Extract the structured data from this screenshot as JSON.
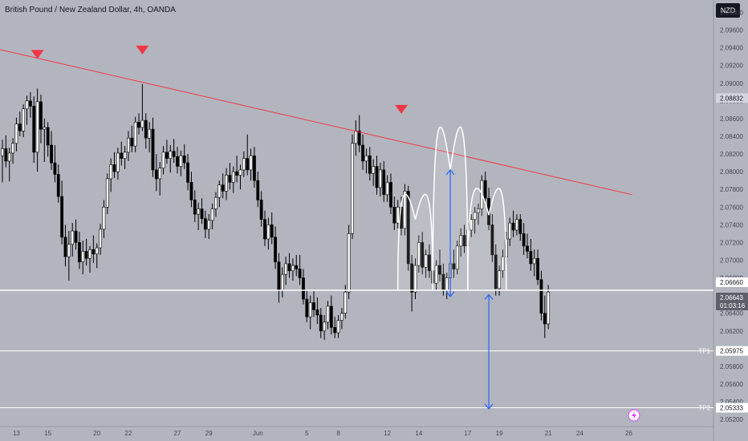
{
  "header": {
    "title": "British Pound / New Zealand Dollar, 4h, OANDA",
    "currency": "NZD"
  },
  "colors": {
    "background": "#b2b5be",
    "trendline": "#f23645",
    "marker": "#f23645",
    "level_line": "#ffffff",
    "arrow": "#2962ff",
    "candle_up": "#ffffff",
    "candle_down": "#000000",
    "tag_dark": "#131722",
    "tag_mid": "#5d606b"
  },
  "chart_data": {
    "type": "candlestick",
    "title": "British Pound / New Zealand Dollar, 4h, OANDA",
    "ylim": [
      2.0512,
      2.0994
    ],
    "y_ticks": [
      2.052,
      2.054,
      2.056,
      2.058,
      2.06,
      2.062,
      2.064,
      2.066,
      2.068,
      2.07,
      2.072,
      2.074,
      2.076,
      2.078,
      2.08,
      2.082,
      2.084,
      2.086,
      2.088,
      2.09,
      2.092,
      2.094,
      2.096,
      2.098
    ],
    "x_ticks": [
      {
        "label": "13",
        "index": 4
      },
      {
        "label": "15",
        "index": 13
      },
      {
        "label": "20",
        "index": 27
      },
      {
        "label": "22",
        "index": 36
      },
      {
        "label": "27",
        "index": 50
      },
      {
        "label": "29",
        "index": 59
      },
      {
        "label": "Jun",
        "index": 73
      },
      {
        "label": "5",
        "index": 87
      },
      {
        "label": "8",
        "index": 96
      },
      {
        "label": "12",
        "index": 110
      },
      {
        "label": "14",
        "index": 119
      },
      {
        "label": "17",
        "index": 133
      },
      {
        "label": "19",
        "index": 142
      },
      {
        "label": "21",
        "index": 156
      },
      {
        "label": "24",
        "index": 165
      },
      {
        "label": "26",
        "index": 179
      }
    ],
    "current_price": {
      "value": "2.06643",
      "countdown": "01:03:16"
    },
    "price_tag": "2.08832",
    "levels": [
      {
        "name": "",
        "value": 2.0666,
        "label": "2.06660"
      },
      {
        "name": "TP1",
        "value": 2.05975,
        "label": "2.05975"
      },
      {
        "name": "TP2",
        "value": 2.05333,
        "label": "2.05333"
      }
    ],
    "trendline": {
      "from": {
        "index": 0,
        "value": 2.0938
      },
      "to": {
        "index": 180,
        "value": 2.0774
      }
    },
    "markers": [
      {
        "index": 10,
        "value": 2.0932
      },
      {
        "index": 40,
        "value": 2.0937
      },
      {
        "index": 114,
        "value": 2.087
      }
    ],
    "arrows": [
      {
        "index": 128,
        "from": 2.0802,
        "to": 2.0659
      },
      {
        "index": 139,
        "from": 2.0661,
        "to": 2.0532
      }
    ],
    "arcs": [
      {
        "from_index": 113,
        "to_index": 123,
        "peak_index": 118,
        "peak": 2.0746,
        "base": 2.0666
      },
      {
        "from_index": 123,
        "to_index": 133,
        "peak_index": 128,
        "peak": 2.0802,
        "base": 2.0666
      },
      {
        "from_index": 133,
        "to_index": 144,
        "peak_index": 139,
        "peak": 2.0751,
        "base": 2.0666
      }
    ],
    "candles": [
      {
        "o": 2.0818,
        "h": 2.0836,
        "l": 2.0788,
        "c": 2.0826
      },
      {
        "o": 2.0826,
        "h": 2.0841,
        "l": 2.0805,
        "c": 2.0812
      },
      {
        "o": 2.0812,
        "h": 2.0827,
        "l": 2.0789,
        "c": 2.0821
      },
      {
        "o": 2.0821,
        "h": 2.0838,
        "l": 2.0809,
        "c": 2.0832
      },
      {
        "o": 2.0832,
        "h": 2.0861,
        "l": 2.0823,
        "c": 2.0854
      },
      {
        "o": 2.0854,
        "h": 2.0868,
        "l": 2.084,
        "c": 2.0846
      },
      {
        "o": 2.0846,
        "h": 2.0876,
        "l": 2.0839,
        "c": 2.0871
      },
      {
        "o": 2.0871,
        "h": 2.0886,
        "l": 2.0853,
        "c": 2.088
      },
      {
        "o": 2.088,
        "h": 2.089,
        "l": 2.0861,
        "c": 2.0874
      },
      {
        "o": 2.0874,
        "h": 2.0885,
        "l": 2.081,
        "c": 2.0822
      },
      {
        "o": 2.0822,
        "h": 2.0894,
        "l": 2.08,
        "c": 2.0879
      },
      {
        "o": 2.0879,
        "h": 2.0887,
        "l": 2.0832,
        "c": 2.0848
      },
      {
        "o": 2.0848,
        "h": 2.086,
        "l": 2.0811,
        "c": 2.085
      },
      {
        "o": 2.085,
        "h": 2.0856,
        "l": 2.0817,
        "c": 2.083
      },
      {
        "o": 2.083,
        "h": 2.0846,
        "l": 2.0802,
        "c": 2.081
      },
      {
        "o": 2.081,
        "h": 2.083,
        "l": 2.0788,
        "c": 2.0797
      },
      {
        "o": 2.0797,
        "h": 2.0808,
        "l": 2.0765,
        "c": 2.0772
      },
      {
        "o": 2.0772,
        "h": 2.079,
        "l": 2.0718,
        "c": 2.0726
      },
      {
        "o": 2.0726,
        "h": 2.074,
        "l": 2.0693,
        "c": 2.0704
      },
      {
        "o": 2.0704,
        "h": 2.0733,
        "l": 2.0677,
        "c": 2.0718
      },
      {
        "o": 2.0718,
        "h": 2.0742,
        "l": 2.0704,
        "c": 2.0733
      },
      {
        "o": 2.0733,
        "h": 2.0746,
        "l": 2.0712,
        "c": 2.072
      },
      {
        "o": 2.072,
        "h": 2.0732,
        "l": 2.069,
        "c": 2.0698
      },
      {
        "o": 2.0698,
        "h": 2.0722,
        "l": 2.0684,
        "c": 2.071
      },
      {
        "o": 2.071,
        "h": 2.0724,
        "l": 2.0694,
        "c": 2.0702
      },
      {
        "o": 2.0702,
        "h": 2.0716,
        "l": 2.0686,
        "c": 2.0712
      },
      {
        "o": 2.0712,
        "h": 2.0728,
        "l": 2.0697,
        "c": 2.0707
      },
      {
        "o": 2.0707,
        "h": 2.0719,
        "l": 2.0691,
        "c": 2.0714
      },
      {
        "o": 2.0714,
        "h": 2.0741,
        "l": 2.0706,
        "c": 2.0735
      },
      {
        "o": 2.0735,
        "h": 2.0768,
        "l": 2.0725,
        "c": 2.076
      },
      {
        "o": 2.076,
        "h": 2.0798,
        "l": 2.0752,
        "c": 2.0792
      },
      {
        "o": 2.0792,
        "h": 2.0815,
        "l": 2.0777,
        "c": 2.0808
      },
      {
        "o": 2.0808,
        "h": 2.0822,
        "l": 2.0793,
        "c": 2.08
      },
      {
        "o": 2.08,
        "h": 2.0827,
        "l": 2.0791,
        "c": 2.0821
      },
      {
        "o": 2.0821,
        "h": 2.0834,
        "l": 2.0807,
        "c": 2.0815
      },
      {
        "o": 2.0815,
        "h": 2.0829,
        "l": 2.0803,
        "c": 2.0822
      },
      {
        "o": 2.0822,
        "h": 2.0846,
        "l": 2.0812,
        "c": 2.0838
      },
      {
        "o": 2.0838,
        "h": 2.0852,
        "l": 2.0822,
        "c": 2.0829
      },
      {
        "o": 2.0829,
        "h": 2.0862,
        "l": 2.0822,
        "c": 2.0856
      },
      {
        "o": 2.0856,
        "h": 2.0866,
        "l": 2.0842,
        "c": 2.085
      },
      {
        "o": 2.085,
        "h": 2.0899,
        "l": 2.0846,
        "c": 2.0858
      },
      {
        "o": 2.0858,
        "h": 2.0866,
        "l": 2.0826,
        "c": 2.0838
      },
      {
        "o": 2.0838,
        "h": 2.0856,
        "l": 2.0822,
        "c": 2.0848
      },
      {
        "o": 2.0848,
        "h": 2.0861,
        "l": 2.0794,
        "c": 2.0802
      },
      {
        "o": 2.0802,
        "h": 2.082,
        "l": 2.0778,
        "c": 2.0792
      },
      {
        "o": 2.0792,
        "h": 2.0811,
        "l": 2.0773,
        "c": 2.0804
      },
      {
        "o": 2.0804,
        "h": 2.0829,
        "l": 2.0797,
        "c": 2.0822
      },
      {
        "o": 2.0822,
        "h": 2.0836,
        "l": 2.0809,
        "c": 2.0815
      },
      {
        "o": 2.0815,
        "h": 2.083,
        "l": 2.0799,
        "c": 2.0823
      },
      {
        "o": 2.0823,
        "h": 2.0837,
        "l": 2.081,
        "c": 2.0817
      },
      {
        "o": 2.0817,
        "h": 2.0828,
        "l": 2.0798,
        "c": 2.0806
      },
      {
        "o": 2.0806,
        "h": 2.0824,
        "l": 2.0795,
        "c": 2.0818
      },
      {
        "o": 2.0818,
        "h": 2.0831,
        "l": 2.0803,
        "c": 2.081
      },
      {
        "o": 2.081,
        "h": 2.082,
        "l": 2.0779,
        "c": 2.0788
      },
      {
        "o": 2.0788,
        "h": 2.08,
        "l": 2.076,
        "c": 2.0768
      },
      {
        "o": 2.0768,
        "h": 2.0779,
        "l": 2.0743,
        "c": 2.0752
      },
      {
        "o": 2.0752,
        "h": 2.0765,
        "l": 2.0734,
        "c": 2.0758
      },
      {
        "o": 2.0758,
        "h": 2.077,
        "l": 2.0741,
        "c": 2.0747
      },
      {
        "o": 2.0747,
        "h": 2.0756,
        "l": 2.0725,
        "c": 2.0735
      },
      {
        "o": 2.0735,
        "h": 2.0752,
        "l": 2.0724,
        "c": 2.0745
      },
      {
        "o": 2.0745,
        "h": 2.0764,
        "l": 2.0735,
        "c": 2.0758
      },
      {
        "o": 2.0758,
        "h": 2.0777,
        "l": 2.0749,
        "c": 2.0771
      },
      {
        "o": 2.0771,
        "h": 2.079,
        "l": 2.076,
        "c": 2.0785
      },
      {
        "o": 2.0785,
        "h": 2.0798,
        "l": 2.077,
        "c": 2.0778
      },
      {
        "o": 2.0778,
        "h": 2.0804,
        "l": 2.0768,
        "c": 2.0796
      },
      {
        "o": 2.0796,
        "h": 2.081,
        "l": 2.078,
        "c": 2.0788
      },
      {
        "o": 2.0788,
        "h": 2.0806,
        "l": 2.0776,
        "c": 2.08
      },
      {
        "o": 2.08,
        "h": 2.0818,
        "l": 2.0788,
        "c": 2.0796
      },
      {
        "o": 2.0796,
        "h": 2.0808,
        "l": 2.078,
        "c": 2.0802
      },
      {
        "o": 2.0802,
        "h": 2.0823,
        "l": 2.0794,
        "c": 2.0815
      },
      {
        "o": 2.0815,
        "h": 2.0842,
        "l": 2.0796,
        "c": 2.0802
      },
      {
        "o": 2.0802,
        "h": 2.0826,
        "l": 2.079,
        "c": 2.0818
      },
      {
        "o": 2.0818,
        "h": 2.0828,
        "l": 2.0782,
        "c": 2.079
      },
      {
        "o": 2.079,
        "h": 2.08,
        "l": 2.076,
        "c": 2.0768
      },
      {
        "o": 2.0768,
        "h": 2.0778,
        "l": 2.0738,
        "c": 2.0746
      },
      {
        "o": 2.0746,
        "h": 2.0756,
        "l": 2.0716,
        "c": 2.0724
      },
      {
        "o": 2.0724,
        "h": 2.0748,
        "l": 2.0712,
        "c": 2.074
      },
      {
        "o": 2.074,
        "h": 2.0754,
        "l": 2.0718,
        "c": 2.0726
      },
      {
        "o": 2.0726,
        "h": 2.0738,
        "l": 2.069,
        "c": 2.0698
      },
      {
        "o": 2.0698,
        "h": 2.0708,
        "l": 2.0652,
        "c": 2.0666
      },
      {
        "o": 2.0666,
        "h": 2.0692,
        "l": 2.0658,
        "c": 2.0684
      },
      {
        "o": 2.0684,
        "h": 2.0704,
        "l": 2.0672,
        "c": 2.0696
      },
      {
        "o": 2.0696,
        "h": 2.0708,
        "l": 2.068,
        "c": 2.0688
      },
      {
        "o": 2.0688,
        "h": 2.0702,
        "l": 2.0677,
        "c": 2.0694
      },
      {
        "o": 2.0694,
        "h": 2.0706,
        "l": 2.0682,
        "c": 2.069
      },
      {
        "o": 2.069,
        "h": 2.0706,
        "l": 2.0672,
        "c": 2.068
      },
      {
        "o": 2.068,
        "h": 2.069,
        "l": 2.065,
        "c": 2.0656
      },
      {
        "o": 2.0656,
        "h": 2.0666,
        "l": 2.063,
        "c": 2.0636
      },
      {
        "o": 2.0636,
        "h": 2.066,
        "l": 2.0622,
        "c": 2.0652
      },
      {
        "o": 2.0652,
        "h": 2.0665,
        "l": 2.0636,
        "c": 2.0644
      },
      {
        "o": 2.0644,
        "h": 2.0658,
        "l": 2.0628,
        "c": 2.0638
      },
      {
        "o": 2.0638,
        "h": 2.0646,
        "l": 2.0612,
        "c": 2.062
      },
      {
        "o": 2.062,
        "h": 2.0638,
        "l": 2.061,
        "c": 2.063
      },
      {
        "o": 2.063,
        "h": 2.0654,
        "l": 2.0622,
        "c": 2.0648
      },
      {
        "o": 2.0648,
        "h": 2.066,
        "l": 2.0616,
        "c": 2.0624
      },
      {
        "o": 2.0624,
        "h": 2.0636,
        "l": 2.0612,
        "c": 2.0618
      },
      {
        "o": 2.0618,
        "h": 2.0638,
        "l": 2.0612,
        "c": 2.0632
      },
      {
        "o": 2.0632,
        "h": 2.0646,
        "l": 2.0622,
        "c": 2.064
      },
      {
        "o": 2.064,
        "h": 2.0672,
        "l": 2.0634,
        "c": 2.0664
      },
      {
        "o": 2.0664,
        "h": 2.074,
        "l": 2.0656,
        "c": 2.073
      },
      {
        "o": 2.073,
        "h": 2.0842,
        "l": 2.0724,
        "c": 2.0832
      },
      {
        "o": 2.0832,
        "h": 2.0858,
        "l": 2.0818,
        "c": 2.0846
      },
      {
        "o": 2.0846,
        "h": 2.0864,
        "l": 2.0822,
        "c": 2.083
      },
      {
        "o": 2.083,
        "h": 2.0842,
        "l": 2.0802,
        "c": 2.0812
      },
      {
        "o": 2.0812,
        "h": 2.0826,
        "l": 2.0798,
        "c": 2.0818
      },
      {
        "o": 2.0818,
        "h": 2.0828,
        "l": 2.079,
        "c": 2.0798
      },
      {
        "o": 2.0798,
        "h": 2.0814,
        "l": 2.0784,
        "c": 2.0806
      },
      {
        "o": 2.0806,
        "h": 2.0818,
        "l": 2.0774,
        "c": 2.0782
      },
      {
        "o": 2.0782,
        "h": 2.081,
        "l": 2.0772,
        "c": 2.0802
      },
      {
        "o": 2.0802,
        "h": 2.0812,
        "l": 2.0766,
        "c": 2.0774
      },
      {
        "o": 2.0774,
        "h": 2.0796,
        "l": 2.0766,
        "c": 2.0788
      },
      {
        "o": 2.0788,
        "h": 2.0798,
        "l": 2.0752,
        "c": 2.076
      },
      {
        "o": 2.076,
        "h": 2.0772,
        "l": 2.0734,
        "c": 2.0742
      },
      {
        "o": 2.0742,
        "h": 2.0768,
        "l": 2.0736,
        "c": 2.076
      },
      {
        "o": 2.076,
        "h": 2.0772,
        "l": 2.0728,
        "c": 2.0736
      },
      {
        "o": 2.0736,
        "h": 2.0786,
        "l": 2.0728,
        "c": 2.0778
      },
      {
        "o": 2.0778,
        "h": 2.0784,
        "l": 2.0688,
        "c": 2.0696
      },
      {
        "o": 2.0696,
        "h": 2.0706,
        "l": 2.0642,
        "c": 2.0664
      },
      {
        "o": 2.0664,
        "h": 2.0702,
        "l": 2.0656,
        "c": 2.0694
      },
      {
        "o": 2.0694,
        "h": 2.0728,
        "l": 2.0686,
        "c": 2.072
      },
      {
        "o": 2.072,
        "h": 2.0732,
        "l": 2.0684,
        "c": 2.0692
      },
      {
        "o": 2.0692,
        "h": 2.0712,
        "l": 2.068,
        "c": 2.0706
      },
      {
        "o": 2.0706,
        "h": 2.0718,
        "l": 2.068,
        "c": 2.0688
      },
      {
        "o": 2.0688,
        "h": 2.07,
        "l": 2.0666,
        "c": 2.0674
      },
      {
        "o": 2.0674,
        "h": 2.07,
        "l": 2.0666,
        "c": 2.0694
      },
      {
        "o": 2.0694,
        "h": 2.0712,
        "l": 2.0676,
        "c": 2.0684
      },
      {
        "o": 2.0684,
        "h": 2.0696,
        "l": 2.066,
        "c": 2.0666
      },
      {
        "o": 2.0666,
        "h": 2.0686,
        "l": 2.0656,
        "c": 2.068
      },
      {
        "o": 2.068,
        "h": 2.0702,
        "l": 2.0672,
        "c": 2.0696
      },
      {
        "o": 2.0696,
        "h": 2.0712,
        "l": 2.068,
        "c": 2.069
      },
      {
        "o": 2.069,
        "h": 2.0722,
        "l": 2.0684,
        "c": 2.0716
      },
      {
        "o": 2.0716,
        "h": 2.0736,
        "l": 2.0704,
        "c": 2.0728
      },
      {
        "o": 2.0728,
        "h": 2.074,
        "l": 2.0708,
        "c": 2.0716
      },
      {
        "o": 2.0716,
        "h": 2.0742,
        "l": 2.071,
        "c": 2.0734
      },
      {
        "o": 2.0734,
        "h": 2.0752,
        "l": 2.0726,
        "c": 2.0746
      },
      {
        "o": 2.0746,
        "h": 2.076,
        "l": 2.073,
        "c": 2.0754
      },
      {
        "o": 2.0754,
        "h": 2.0764,
        "l": 2.074,
        "c": 2.0758
      },
      {
        "o": 2.0758,
        "h": 2.0796,
        "l": 2.075,
        "c": 2.079
      },
      {
        "o": 2.079,
        "h": 2.08,
        "l": 2.0762,
        "c": 2.077
      },
      {
        "o": 2.077,
        "h": 2.0782,
        "l": 2.0734,
        "c": 2.074
      },
      {
        "o": 2.074,
        "h": 2.0752,
        "l": 2.0698,
        "c": 2.0706
      },
      {
        "o": 2.0706,
        "h": 2.0718,
        "l": 2.066,
        "c": 2.0668
      },
      {
        "o": 2.0668,
        "h": 2.0694,
        "l": 2.066,
        "c": 2.0688
      },
      {
        "o": 2.0688,
        "h": 2.0712,
        "l": 2.068,
        "c": 2.0704
      },
      {
        "o": 2.0704,
        "h": 2.0732,
        "l": 2.0696,
        "c": 2.0724
      },
      {
        "o": 2.0724,
        "h": 2.0748,
        "l": 2.0716,
        "c": 2.0742
      },
      {
        "o": 2.0742,
        "h": 2.0756,
        "l": 2.0726,
        "c": 2.0734
      },
      {
        "o": 2.0734,
        "h": 2.0752,
        "l": 2.0728,
        "c": 2.0746
      },
      {
        "o": 2.0746,
        "h": 2.0752,
        "l": 2.0722,
        "c": 2.073
      },
      {
        "o": 2.073,
        "h": 2.0742,
        "l": 2.0706,
        "c": 2.0716
      },
      {
        "o": 2.0716,
        "h": 2.073,
        "l": 2.0702,
        "c": 2.071
      },
      {
        "o": 2.071,
        "h": 2.0724,
        "l": 2.0688,
        "c": 2.0696
      },
      {
        "o": 2.0696,
        "h": 2.0712,
        "l": 2.0682,
        "c": 2.0702
      },
      {
        "o": 2.0702,
        "h": 2.0712,
        "l": 2.0672,
        "c": 2.0678
      },
      {
        "o": 2.0678,
        "h": 2.0688,
        "l": 2.0632,
        "c": 2.064
      },
      {
        "o": 2.064,
        "h": 2.066,
        "l": 2.0612,
        "c": 2.0628
      },
      {
        "o": 2.0628,
        "h": 2.0672,
        "l": 2.0622,
        "c": 2.0664
      }
    ]
  }
}
